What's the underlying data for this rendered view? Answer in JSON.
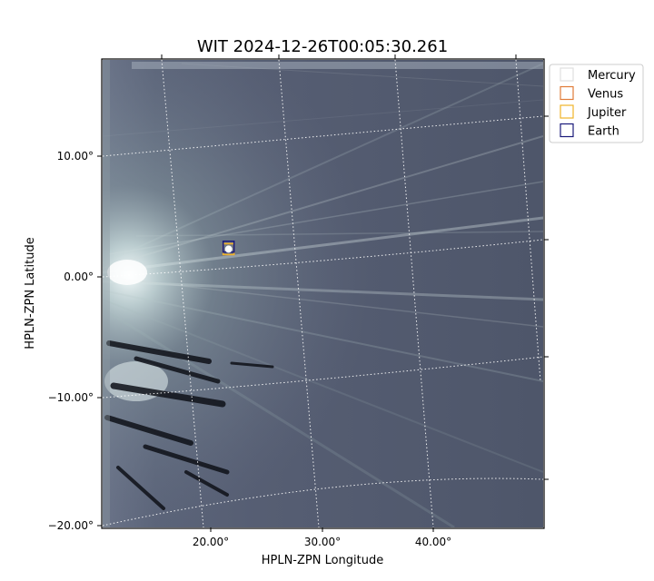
{
  "chart_data": {
    "type": "heatmap",
    "title": "WIT 2024-12-26T00:05:30.261",
    "xlabel": "HPLN-ZPN Longitude",
    "ylabel": "HPLN-ZPN Latitude",
    "x_ticks": [
      "20.00°",
      "30.00°",
      "40.00°"
    ],
    "y_ticks": [
      "10.00°",
      "0.00°",
      "-10.00°",
      "-20.00°"
    ],
    "grid": true,
    "colormap": "bone",
    "legend_position": "top-right",
    "legend": [
      {
        "name": "Mercury",
        "color": "#e0e0e0"
      },
      {
        "name": "Venus",
        "color": "#e07b39"
      },
      {
        "name": "Jupiter",
        "color": "#f0b429"
      },
      {
        "name": "Earth",
        "color": "#1a1a7a"
      }
    ],
    "markers": [
      {
        "name": "Venus",
        "lon": 21.6,
        "lat": 2.3
      },
      {
        "name": "Jupiter",
        "lon": 21.6,
        "lat": 2.3
      },
      {
        "name": "Earth",
        "lon": 21.6,
        "lat": 2.5
      }
    ]
  }
}
